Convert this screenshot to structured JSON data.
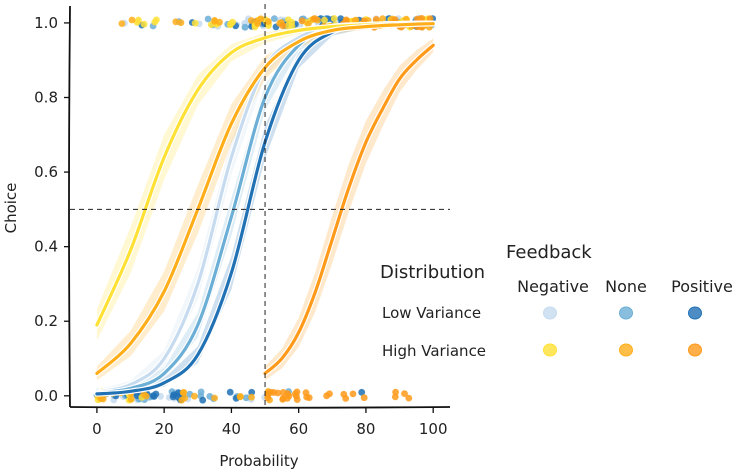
{
  "chart_data": {
    "type": "line",
    "title": "",
    "xlabel": "Probability",
    "ylabel": "Choice",
    "xlim": [
      -8,
      105
    ],
    "ylim": [
      -0.03,
      1.04
    ],
    "x_ticks": [
      0,
      20,
      40,
      60,
      80,
      100
    ],
    "y_ticks": [
      0.0,
      0.2,
      0.4,
      0.6,
      0.8,
      1.0
    ],
    "x_tick_labels": [
      "0",
      "20",
      "40",
      "60",
      "80",
      "100"
    ],
    "y_tick_labels": [
      "0.0",
      "0.2",
      "0.4",
      "0.6",
      "0.8",
      "1.0"
    ],
    "reference_lines": {
      "x": 50,
      "y": 0.5
    },
    "grid": false,
    "legend": {
      "placement": "right",
      "feedback_title": "Feedback",
      "distribution_title": "Distribution",
      "feedback_levels": [
        "Negative",
        "None",
        "Positive"
      ],
      "distribution_levels": [
        "Low Variance",
        "High Variance"
      ]
    },
    "series": [
      {
        "distribution": "Low Variance",
        "feedback": "Negative",
        "color": "#c6dbef",
        "x": [
          0,
          10,
          20,
          30,
          40,
          50,
          60,
          70,
          80,
          90,
          100
        ],
        "y": [
          0.01,
          0.03,
          0.1,
          0.3,
          0.64,
          0.88,
          0.96,
          0.99,
          0.995,
          0.998,
          0.999
        ]
      },
      {
        "distribution": "Low Variance",
        "feedback": "None",
        "color": "#6baed6",
        "x": [
          0,
          10,
          20,
          30,
          40,
          50,
          60,
          70,
          80,
          90,
          100
        ],
        "y": [
          0.007,
          0.02,
          0.06,
          0.19,
          0.48,
          0.8,
          0.94,
          0.985,
          0.995,
          0.998,
          0.999
        ]
      },
      {
        "distribution": "Low Variance",
        "feedback": "Positive",
        "color": "#2171b5",
        "x": [
          0,
          10,
          20,
          30,
          40,
          50,
          60,
          70,
          80,
          90,
          100
        ],
        "y": [
          0.005,
          0.012,
          0.035,
          0.11,
          0.33,
          0.68,
          0.9,
          0.975,
          0.993,
          0.998,
          0.999
        ]
      },
      {
        "distribution": "High Variance",
        "feedback": "Negative",
        "color": "#ffe135",
        "x": [
          0,
          10,
          20,
          30,
          40,
          50,
          60,
          70,
          80,
          90,
          100
        ],
        "y": [
          0.19,
          0.39,
          0.64,
          0.82,
          0.92,
          0.96,
          0.98,
          0.99,
          0.995,
          0.998,
          0.999
        ]
      },
      {
        "distribution": "High Variance",
        "feedback": "None",
        "color": "#ffae1a",
        "x": [
          0,
          10,
          20,
          30,
          40,
          50,
          60,
          70,
          80,
          90,
          100
        ],
        "y": [
          0.06,
          0.14,
          0.28,
          0.5,
          0.73,
          0.88,
          0.95,
          0.98,
          0.99,
          0.995,
          0.998
        ]
      },
      {
        "distribution": "High Variance",
        "feedback": "Positive",
        "color": "#ff9a1a",
        "x": [
          50,
          55,
          60,
          65,
          70,
          75,
          80,
          85,
          90,
          95,
          100
        ],
        "y": [
          0.06,
          0.1,
          0.17,
          0.28,
          0.42,
          0.56,
          0.68,
          0.77,
          0.85,
          0.9,
          0.94
        ]
      }
    ]
  }
}
